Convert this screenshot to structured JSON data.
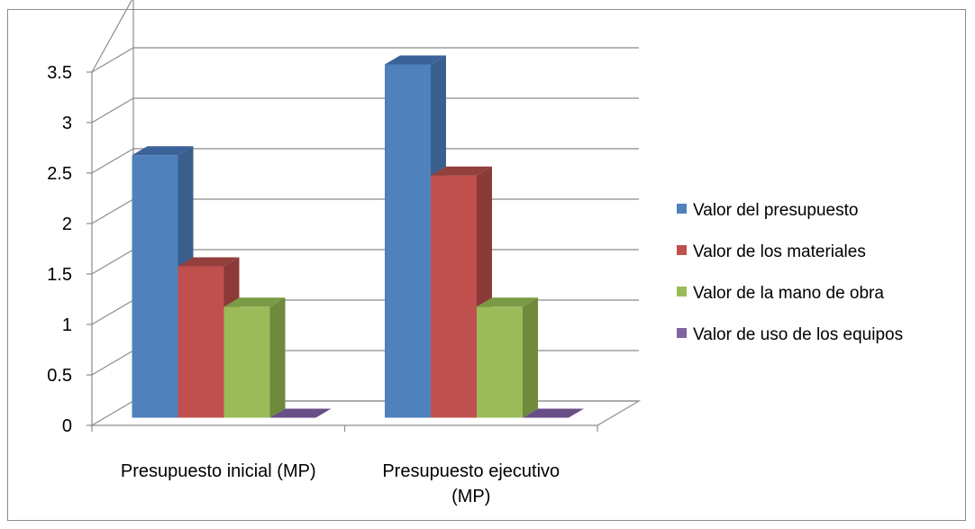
{
  "chart_data": {
    "type": "bar",
    "style": "3d-clustered-column",
    "categories": [
      [
        "Presupuesto inicial (MP)"
      ],
      [
        "Presupuesto ejecutivo",
        "(MP)"
      ]
    ],
    "series": [
      {
        "name": "Valor del presupuesto",
        "values": [
          2.6,
          3.5
        ],
        "color": "#4f81bd",
        "side": "#3a5f8c",
        "top": "#3c6399"
      },
      {
        "name": "Valor de los materiales",
        "values": [
          1.5,
          2.4
        ],
        "color": "#c0504d",
        "side": "#8b3a38",
        "top": "#93403d"
      },
      {
        "name": "Valor de la mano de obra",
        "values": [
          1.1,
          1.1
        ],
        "color": "#9bbb59",
        "side": "#6f8a3c",
        "top": "#7a9a45"
      },
      {
        "name": "Valor de uso de los equipos",
        "values": [
          0,
          0
        ],
        "color": "#8064a2",
        "side": "#5c4876",
        "top": "#684f87"
      }
    ],
    "yticks": [
      "0",
      "0.5",
      "1",
      "1.5",
      "2",
      "2.5",
      "3",
      "3.5"
    ],
    "ylim": [
      0,
      3.5
    ],
    "grid": true,
    "legend": "right"
  }
}
